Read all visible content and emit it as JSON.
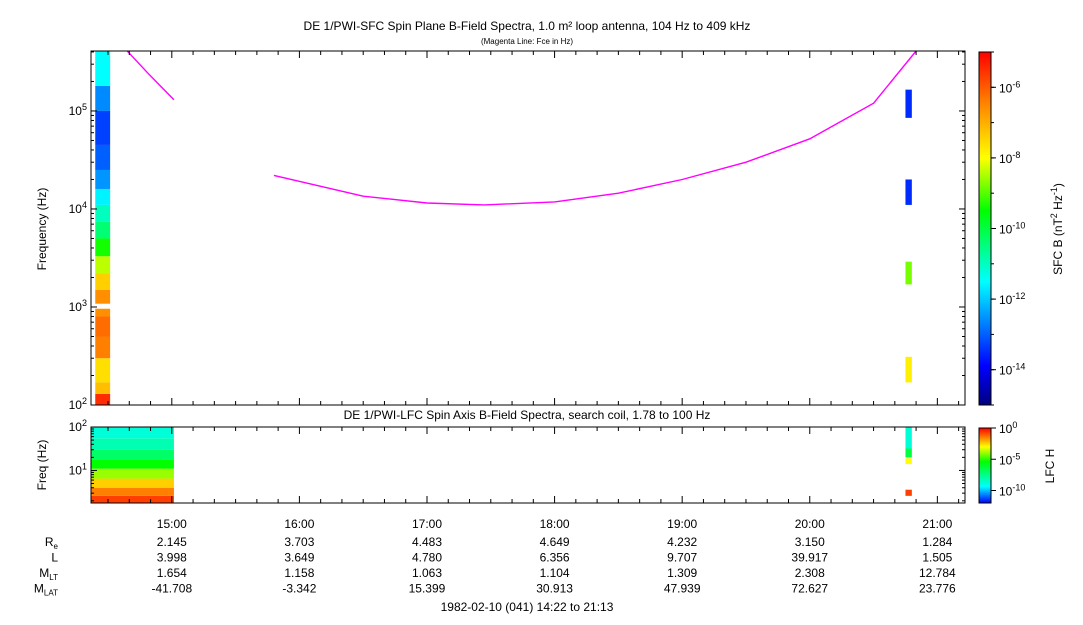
{
  "chart_data": [
    {
      "type": "heatmap",
      "title": "DE 1/PWI-SFC  Spin Plane B-Field Spectra, 1.0 m² loop antenna, 104 Hz to 409 kHz",
      "subtitle": "(Magenta Line: Fce in Hz)",
      "ylabel": "Frequency (Hz)",
      "yscale": "log",
      "ylim": [
        100,
        409000
      ],
      "y_tick_values": [
        100,
        1000,
        10000,
        100000
      ],
      "y_tick_labels": [
        {
          "base": "10",
          "exp": "2"
        },
        {
          "base": "10",
          "exp": "3"
        },
        {
          "base": "10",
          "exp": "4"
        },
        {
          "base": "10",
          "exp": "5"
        }
      ],
      "xlim": [
        "14:22",
        "21:13"
      ],
      "colorbar": {
        "label_parts": [
          "SFC B (nT",
          "2",
          " Hz",
          "-1",
          ")"
        ],
        "scale": "log",
        "range": [
          1e-15,
          1e-05
        ],
        "tick_values": [
          1e-06,
          1e-08,
          1e-10,
          1e-12,
          1e-14
        ],
        "tick_labels": [
          {
            "base": "10",
            "exp": "-6"
          },
          {
            "base": "10",
            "exp": "-8"
          },
          {
            "base": "10",
            "exp": "-10"
          },
          {
            "base": "10",
            "exp": "-12"
          },
          {
            "base": "10",
            "exp": "-14"
          }
        ]
      },
      "fce_line": {
        "color": "#ff00ff",
        "segments": [
          {
            "t": [
              "14:39",
              "14:49",
              "15:01"
            ],
            "f": [
              409000,
              240000,
              130000
            ]
          },
          {
            "t": [
              "15:48",
              "16:30",
              "17:00",
              "17:27",
              "18:00",
              "18:30",
              "19:00",
              "19:30",
              "20:00",
              "20:30",
              "20:50"
            ],
            "f": [
              22000,
              13500,
              11500,
              11000,
              11800,
              14500,
              20000,
              30000,
              52000,
              120000,
              409000
            ]
          }
        ]
      },
      "data_blocks": [
        {
          "t": [
            "14:24",
            "14:31"
          ],
          "bands": [
            {
              "f": [
                100,
                130
              ],
              "level": 0.95
            },
            {
              "f": [
                130,
                170
              ],
              "level": 0.78
            },
            {
              "f": [
                170,
                300
              ],
              "level": 0.74
            },
            {
              "f": [
                300,
                500
              ],
              "level": 0.86
            },
            {
              "f": [
                500,
                800
              ],
              "level": 0.88
            },
            {
              "f": [
                800,
                960
              ],
              "level": 0.84
            },
            {
              "f": [
                1080,
                1500
              ],
              "level": 0.84
            },
            {
              "f": [
                1500,
                2200
              ],
              "level": 0.76
            },
            {
              "f": [
                2200,
                3300
              ],
              "level": 0.66
            },
            {
              "f": [
                3300,
                5000
              ],
              "level": 0.56
            },
            {
              "f": [
                5000,
                7500
              ],
              "level": 0.46
            },
            {
              "f": [
                7500,
                11000
              ],
              "level": 0.4
            },
            {
              "f": [
                11000,
                16000
              ],
              "level": 0.34
            },
            {
              "f": [
                16000,
                25000
              ],
              "level": 0.25
            },
            {
              "f": [
                25000,
                45000
              ],
              "level": 0.2
            },
            {
              "f": [
                45000,
                100000
              ],
              "level": 0.17
            },
            {
              "f": [
                100000,
                180000
              ],
              "level": 0.24
            },
            {
              "f": [
                180000,
                409000
              ],
              "level": 0.35
            }
          ]
        },
        {
          "t": [
            "20:45",
            "20:48"
          ],
          "bands": [
            {
              "f": [
                170,
                310
              ],
              "level": 0.72
            },
            {
              "f": [
                1700,
                2900
              ],
              "level": 0.62
            },
            {
              "f": [
                11000,
                20000
              ],
              "level": 0.15
            },
            {
              "f": [
                85000,
                165000
              ],
              "level": 0.15
            }
          ]
        }
      ]
    },
    {
      "type": "heatmap",
      "title": "DE 1/PWI-LFC  Spin Axis B-Field Spectra, search coil, 1.78 to 100 Hz",
      "ylabel": "Freq (Hz)",
      "yscale": "log",
      "ylim": [
        1.78,
        100
      ],
      "y_tick_values": [
        10,
        100
      ],
      "y_tick_labels": [
        {
          "base": "10",
          "exp": "1"
        },
        {
          "base": "10",
          "exp": "2"
        }
      ],
      "xlim": [
        "14:22",
        "21:13"
      ],
      "colorbar": {
        "label": "LFC H",
        "scale": "log",
        "range": [
          1e-12,
          1
        ],
        "tick_values": [
          1,
          1e-05,
          1e-10
        ],
        "tick_labels": [
          {
            "base": "10",
            "exp": "0"
          },
          {
            "base": "10",
            "exp": "-5"
          },
          {
            "base": "10",
            "exp": "-10"
          }
        ]
      },
      "data_blocks": [
        {
          "t": [
            "14:22",
            "15:01"
          ],
          "bands": [
            {
              "f": [
                1.78,
                2.6
              ],
              "level": 0.93
            },
            {
              "f": [
                2.6,
                4.0
              ],
              "level": 0.86
            },
            {
              "f": [
                4.0,
                6.5
              ],
              "level": 0.76
            },
            {
              "f": [
                6.5,
                11
              ],
              "level": 0.64
            },
            {
              "f": [
                11,
                18
              ],
              "level": 0.55
            },
            {
              "f": [
                18,
                30
              ],
              "level": 0.47
            },
            {
              "f": [
                30,
                55
              ],
              "level": 0.41
            },
            {
              "f": [
                55,
                100
              ],
              "level": 0.38
            }
          ]
        },
        {
          "t": [
            "20:45",
            "20:48"
          ],
          "bands": [
            {
              "f": [
                2.6,
                3.6
              ],
              "level": 0.93
            },
            {
              "f": [
                14,
                19
              ],
              "level": 0.7
            },
            {
              "f": [
                20,
                32
              ],
              "level": 0.5
            },
            {
              "f": [
                32,
                100
              ],
              "level": 0.38
            }
          ]
        }
      ]
    }
  ],
  "x_axis": {
    "tick_labels": [
      "15:00",
      "16:00",
      "17:00",
      "18:00",
      "19:00",
      "20:00",
      "21:00"
    ],
    "ephemeris": [
      {
        "label": "R",
        "sub": "e",
        "values": [
          "2.145",
          "3.703",
          "4.483",
          "4.649",
          "4.232",
          "3.150",
          "1.284"
        ]
      },
      {
        "label": "L",
        "sub": "",
        "values": [
          "3.998",
          "3.649",
          "4.780",
          "6.356",
          "9.707",
          "39.917",
          "1.505"
        ]
      },
      {
        "label": "M",
        "sub": "LT",
        "values": [
          "1.654",
          "1.158",
          "1.063",
          "1.104",
          "1.309",
          "2.308",
          "12.784"
        ]
      },
      {
        "label": "M",
        "sub": "LAT",
        "values": [
          "-41.708",
          "-3.342",
          "15.399",
          "30.913",
          "47.939",
          "72.627",
          "23.776"
        ]
      }
    ],
    "date_range": "1982-02-10 (041) 14:22 to 21:13"
  }
}
